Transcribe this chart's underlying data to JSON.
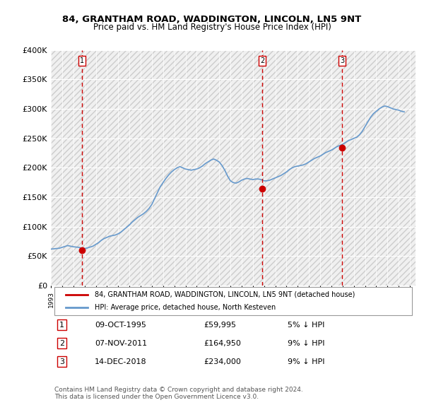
{
  "title": "84, GRANTHAM ROAD, WADDINGTON, LINCOLN, LN5 9NT",
  "subtitle": "Price paid vs. HM Land Registry's House Price Index (HPI)",
  "ylabel": "",
  "background_color": "#ffffff",
  "plot_bg_color": "#f0f0f0",
  "grid_color": "#ffffff",
  "hatch_color": "#cccccc",
  "sale_color": "#cc0000",
  "hpi_color": "#6699cc",
  "transaction_lines_color": "#cc0000",
  "ylim": [
    0,
    400000
  ],
  "yticks": [
    0,
    50000,
    100000,
    150000,
    200000,
    250000,
    300000,
    350000,
    400000
  ],
  "ytick_labels": [
    "£0",
    "£50K",
    "£100K",
    "£150K",
    "£200K",
    "£250K",
    "£300K",
    "£350K",
    "£400K"
  ],
  "xlim_start": 1993.0,
  "xlim_end": 2025.5,
  "transactions": [
    {
      "year": 1995.77,
      "price": 59995,
      "label": "1"
    },
    {
      "year": 2011.85,
      "price": 164950,
      "label": "2"
    },
    {
      "year": 2018.95,
      "price": 234000,
      "label": "3"
    }
  ],
  "transaction_table": [
    {
      "num": "1",
      "date": "09-OCT-1995",
      "price": "£59,995",
      "hpi": "5% ↓ HPI"
    },
    {
      "num": "2",
      "date": "07-NOV-2011",
      "price": "£164,950",
      "hpi": "9% ↓ HPI"
    },
    {
      "num": "3",
      "date": "14-DEC-2018",
      "price": "£234,000",
      "hpi": "9% ↓ HPI"
    }
  ],
  "legend_entries": [
    {
      "label": "84, GRANTHAM ROAD, WADDINGTON, LINCOLN, LN5 9NT (detached house)",
      "color": "#cc0000"
    },
    {
      "label": "HPI: Average price, detached house, North Kesteven",
      "color": "#6699cc"
    }
  ],
  "footnote": "Contains HM Land Registry data © Crown copyright and database right 2024.\nThis data is licensed under the Open Government Licence v3.0.",
  "hpi_data_x": [
    1993.0,
    1993.25,
    1993.5,
    1993.75,
    1994.0,
    1994.25,
    1994.5,
    1994.75,
    1995.0,
    1995.25,
    1995.5,
    1995.75,
    1996.0,
    1996.25,
    1996.5,
    1996.75,
    1997.0,
    1997.25,
    1997.5,
    1997.75,
    1998.0,
    1998.25,
    1998.5,
    1998.75,
    1999.0,
    1999.25,
    1999.5,
    1999.75,
    2000.0,
    2000.25,
    2000.5,
    2000.75,
    2001.0,
    2001.25,
    2001.5,
    2001.75,
    2002.0,
    2002.25,
    2002.5,
    2002.75,
    2003.0,
    2003.25,
    2003.5,
    2003.75,
    2004.0,
    2004.25,
    2004.5,
    2004.75,
    2005.0,
    2005.25,
    2005.5,
    2005.75,
    2006.0,
    2006.25,
    2006.5,
    2006.75,
    2007.0,
    2007.25,
    2007.5,
    2007.75,
    2008.0,
    2008.25,
    2008.5,
    2008.75,
    2009.0,
    2009.25,
    2009.5,
    2009.75,
    2010.0,
    2010.25,
    2010.5,
    2010.75,
    2011.0,
    2011.25,
    2011.5,
    2011.75,
    2012.0,
    2012.25,
    2012.5,
    2012.75,
    2013.0,
    2013.25,
    2013.5,
    2013.75,
    2014.0,
    2014.25,
    2014.5,
    2014.75,
    2015.0,
    2015.25,
    2015.5,
    2015.75,
    2016.0,
    2016.25,
    2016.5,
    2016.75,
    2017.0,
    2017.25,
    2017.5,
    2017.75,
    2018.0,
    2018.25,
    2018.5,
    2018.75,
    2019.0,
    2019.25,
    2019.5,
    2019.75,
    2020.0,
    2020.25,
    2020.5,
    2020.75,
    2021.0,
    2021.25,
    2021.5,
    2021.75,
    2022.0,
    2022.25,
    2022.5,
    2022.75,
    2023.0,
    2023.25,
    2023.5,
    2023.75,
    2024.0,
    2024.25,
    2024.5
  ],
  "hpi_data_y": [
    62000,
    62500,
    63000,
    63500,
    65000,
    66500,
    68000,
    67000,
    66000,
    65500,
    65000,
    63500,
    63000,
    64000,
    65500,
    67000,
    70000,
    73000,
    77000,
    80000,
    82000,
    84000,
    85000,
    86000,
    88000,
    91000,
    95000,
    99000,
    103000,
    108000,
    112000,
    116000,
    119000,
    122000,
    126000,
    131000,
    138000,
    148000,
    158000,
    168000,
    175000,
    182000,
    188000,
    193000,
    197000,
    200000,
    202000,
    200000,
    198000,
    197000,
    196000,
    197000,
    198000,
    200000,
    203000,
    207000,
    210000,
    213000,
    215000,
    213000,
    210000,
    204000,
    196000,
    186000,
    178000,
    175000,
    174000,
    176000,
    179000,
    181000,
    182000,
    181000,
    180000,
    181000,
    181000,
    180000,
    178000,
    178000,
    179000,
    181000,
    183000,
    185000,
    187000,
    190000,
    193000,
    197000,
    200000,
    202000,
    203000,
    204000,
    205000,
    207000,
    210000,
    213000,
    216000,
    218000,
    220000,
    223000,
    226000,
    228000,
    230000,
    233000,
    236000,
    238000,
    240000,
    243000,
    246000,
    248000,
    250000,
    252000,
    256000,
    262000,
    270000,
    278000,
    286000,
    292000,
    296000,
    300000,
    303000,
    305000,
    304000,
    302000,
    300000,
    299000,
    298000,
    296000,
    295000
  ]
}
